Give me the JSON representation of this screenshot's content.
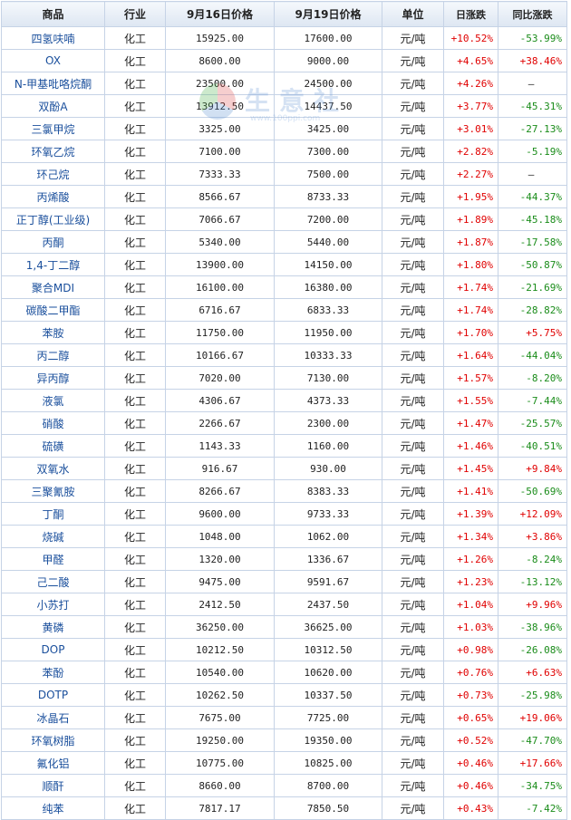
{
  "watermark": {
    "text": "生意社",
    "url": "www.100ppi.com"
  },
  "header": {
    "name": "商品",
    "industry": "行业",
    "price1": "9月16日价格",
    "price2": "9月19日价格",
    "unit": "单位",
    "daily": "日涨跌",
    "yoy": "同比涨跌"
  },
  "rows": [
    {
      "name": "四氢呋喃",
      "industry": "化工",
      "p1": "15925.00",
      "p2": "17600.00",
      "unit": "元/吨",
      "daily": "+10.52%",
      "yoy": "-53.99%"
    },
    {
      "name": "OX",
      "industry": "化工",
      "p1": "8600.00",
      "p2": "9000.00",
      "unit": "元/吨",
      "daily": "+4.65%",
      "yoy": "+38.46%"
    },
    {
      "name": "N-甲基吡咯烷酮",
      "industry": "化工",
      "p1": "23500.00",
      "p2": "24500.00",
      "unit": "元/吨",
      "daily": "+4.26%",
      "yoy": "—"
    },
    {
      "name": "双酚A",
      "industry": "化工",
      "p1": "13912.50",
      "p2": "14437.50",
      "unit": "元/吨",
      "daily": "+3.77%",
      "yoy": "-45.31%"
    },
    {
      "name": "三氯甲烷",
      "industry": "化工",
      "p1": "3325.00",
      "p2": "3425.00",
      "unit": "元/吨",
      "daily": "+3.01%",
      "yoy": "-27.13%"
    },
    {
      "name": "环氧乙烷",
      "industry": "化工",
      "p1": "7100.00",
      "p2": "7300.00",
      "unit": "元/吨",
      "daily": "+2.82%",
      "yoy": "-5.19%"
    },
    {
      "name": "环己烷",
      "industry": "化工",
      "p1": "7333.33",
      "p2": "7500.00",
      "unit": "元/吨",
      "daily": "+2.27%",
      "yoy": "—"
    },
    {
      "name": "丙烯酸",
      "industry": "化工",
      "p1": "8566.67",
      "p2": "8733.33",
      "unit": "元/吨",
      "daily": "+1.95%",
      "yoy": "-44.37%"
    },
    {
      "name": "正丁醇(工业级)",
      "industry": "化工",
      "p1": "7066.67",
      "p2": "7200.00",
      "unit": "元/吨",
      "daily": "+1.89%",
      "yoy": "-45.18%"
    },
    {
      "name": "丙酮",
      "industry": "化工",
      "p1": "5340.00",
      "p2": "5440.00",
      "unit": "元/吨",
      "daily": "+1.87%",
      "yoy": "-17.58%"
    },
    {
      "name": "1,4-丁二醇",
      "industry": "化工",
      "p1": "13900.00",
      "p2": "14150.00",
      "unit": "元/吨",
      "daily": "+1.80%",
      "yoy": "-50.87%"
    },
    {
      "name": "聚合MDI",
      "industry": "化工",
      "p1": "16100.00",
      "p2": "16380.00",
      "unit": "元/吨",
      "daily": "+1.74%",
      "yoy": "-21.69%"
    },
    {
      "name": "碳酸二甲酯",
      "industry": "化工",
      "p1": "6716.67",
      "p2": "6833.33",
      "unit": "元/吨",
      "daily": "+1.74%",
      "yoy": "-28.82%"
    },
    {
      "name": "苯胺",
      "industry": "化工",
      "p1": "11750.00",
      "p2": "11950.00",
      "unit": "元/吨",
      "daily": "+1.70%",
      "yoy": "+5.75%"
    },
    {
      "name": "丙二醇",
      "industry": "化工",
      "p1": "10166.67",
      "p2": "10333.33",
      "unit": "元/吨",
      "daily": "+1.64%",
      "yoy": "-44.04%"
    },
    {
      "name": "异丙醇",
      "industry": "化工",
      "p1": "7020.00",
      "p2": "7130.00",
      "unit": "元/吨",
      "daily": "+1.57%",
      "yoy": "-8.20%"
    },
    {
      "name": "液氯",
      "industry": "化工",
      "p1": "4306.67",
      "p2": "4373.33",
      "unit": "元/吨",
      "daily": "+1.55%",
      "yoy": "-7.44%"
    },
    {
      "name": "硝酸",
      "industry": "化工",
      "p1": "2266.67",
      "p2": "2300.00",
      "unit": "元/吨",
      "daily": "+1.47%",
      "yoy": "-25.57%"
    },
    {
      "name": "硫磺",
      "industry": "化工",
      "p1": "1143.33",
      "p2": "1160.00",
      "unit": "元/吨",
      "daily": "+1.46%",
      "yoy": "-40.51%"
    },
    {
      "name": "双氧水",
      "industry": "化工",
      "p1": "916.67",
      "p2": "930.00",
      "unit": "元/吨",
      "daily": "+1.45%",
      "yoy": "+9.84%"
    },
    {
      "name": "三聚氰胺",
      "industry": "化工",
      "p1": "8266.67",
      "p2": "8383.33",
      "unit": "元/吨",
      "daily": "+1.41%",
      "yoy": "-50.69%"
    },
    {
      "name": "丁酮",
      "industry": "化工",
      "p1": "9600.00",
      "p2": "9733.33",
      "unit": "元/吨",
      "daily": "+1.39%",
      "yoy": "+12.09%"
    },
    {
      "name": "烧碱",
      "industry": "化工",
      "p1": "1048.00",
      "p2": "1062.00",
      "unit": "元/吨",
      "daily": "+1.34%",
      "yoy": "+3.86%"
    },
    {
      "name": "甲醛",
      "industry": "化工",
      "p1": "1320.00",
      "p2": "1336.67",
      "unit": "元/吨",
      "daily": "+1.26%",
      "yoy": "-8.24%"
    },
    {
      "name": "己二酸",
      "industry": "化工",
      "p1": "9475.00",
      "p2": "9591.67",
      "unit": "元/吨",
      "daily": "+1.23%",
      "yoy": "-13.12%"
    },
    {
      "name": "小苏打",
      "industry": "化工",
      "p1": "2412.50",
      "p2": "2437.50",
      "unit": "元/吨",
      "daily": "+1.04%",
      "yoy": "+9.96%"
    },
    {
      "name": "黄磷",
      "industry": "化工",
      "p1": "36250.00",
      "p2": "36625.00",
      "unit": "元/吨",
      "daily": "+1.03%",
      "yoy": "-38.96%"
    },
    {
      "name": "DOP",
      "industry": "化工",
      "p1": "10212.50",
      "p2": "10312.50",
      "unit": "元/吨",
      "daily": "+0.98%",
      "yoy": "-26.08%"
    },
    {
      "name": "苯酚",
      "industry": "化工",
      "p1": "10540.00",
      "p2": "10620.00",
      "unit": "元/吨",
      "daily": "+0.76%",
      "yoy": "+6.63%"
    },
    {
      "name": "DOTP",
      "industry": "化工",
      "p1": "10262.50",
      "p2": "10337.50",
      "unit": "元/吨",
      "daily": "+0.73%",
      "yoy": "-25.98%"
    },
    {
      "name": "冰晶石",
      "industry": "化工",
      "p1": "7675.00",
      "p2": "7725.00",
      "unit": "元/吨",
      "daily": "+0.65%",
      "yoy": "+19.06%"
    },
    {
      "name": "环氧树脂",
      "industry": "化工",
      "p1": "19250.00",
      "p2": "19350.00",
      "unit": "元/吨",
      "daily": "+0.52%",
      "yoy": "-47.70%"
    },
    {
      "name": "氟化铝",
      "industry": "化工",
      "p1": "10775.00",
      "p2": "10825.00",
      "unit": "元/吨",
      "daily": "+0.46%",
      "yoy": "+17.66%"
    },
    {
      "name": "顺酐",
      "industry": "化工",
      "p1": "8660.00",
      "p2": "8700.00",
      "unit": "元/吨",
      "daily": "+0.46%",
      "yoy": "-34.75%"
    },
    {
      "name": "纯苯",
      "industry": "化工",
      "p1": "7817.17",
      "p2": "7850.50",
      "unit": "元/吨",
      "daily": "+0.43%",
      "yoy": "-7.42%"
    }
  ],
  "colors": {
    "up": "#e00000",
    "down": "#1a8c1a",
    "name_link": "#1a4f9c",
    "border": "#c6d3e6"
  }
}
